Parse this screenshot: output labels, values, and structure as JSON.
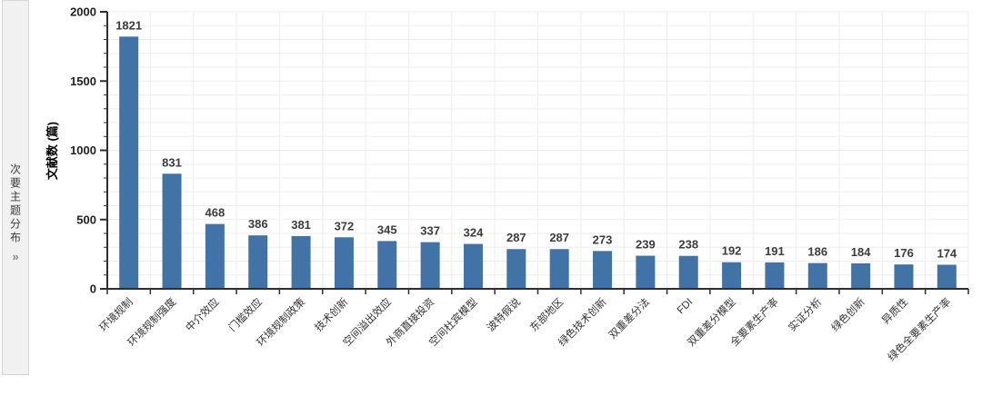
{
  "sidebar": {
    "title": "次要主题分布",
    "chevron": "»"
  },
  "chart_data": {
    "type": "bar",
    "title": "",
    "xlabel": "",
    "ylabel": "文献数 (篇)",
    "categories": [
      "环境规制",
      "环境规制强度",
      "中介效应",
      "门槛效应",
      "环境规制政策",
      "技术创新",
      "空间溢出效应",
      "外商直接投资",
      "空间杜宾模型",
      "波特假说",
      "东部地区",
      "绿色技术创新",
      "双重差分法",
      "FDI",
      "双重差分模型",
      "全要素生产率",
      "实证分析",
      "绿色创新",
      "异质性",
      "绿色全要素生产率"
    ],
    "values": [
      1821,
      831,
      468,
      386,
      381,
      372,
      345,
      337,
      324,
      287,
      287,
      273,
      239,
      238,
      192,
      191,
      186,
      184,
      176,
      174
    ],
    "value_labels_shown": true,
    "ylim": [
      0,
      2000
    ],
    "yticks": [
      0,
      500,
      1000,
      1500,
      2000
    ],
    "minor_tick_step": 100,
    "grid": "on",
    "grid_minor_step": 100,
    "legend": "none",
    "colors": {
      "bar": "#4273a6",
      "axis": "#2e2e2e",
      "grid": "#ededed",
      "value_label": "#3c3c3c",
      "tick_label": "#1f1f1f",
      "x_label": "#333333",
      "y_title": "#000000",
      "sidebar_bg": "#f1f1f1",
      "sidebar_border": "#d6d6d6",
      "sidebar_text": "#3a3a3a",
      "sidebar_chevron": "#8a8a8a"
    }
  }
}
